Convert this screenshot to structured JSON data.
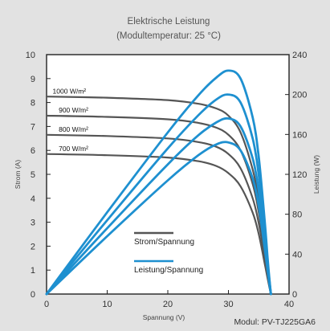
{
  "chart_data": {
    "type": "line",
    "title": "Elektrische Leistung",
    "subtitle": "(Modultemperatur: 25 °C)",
    "xlabel": "Spannung (V)",
    "ylabel_left": "Strom (A)",
    "ylabel_right": "Leistung (W)",
    "xlim": [
      0,
      40
    ],
    "ylim_left": [
      0,
      10
    ],
    "ylim_right": [
      0,
      240
    ],
    "xticks": [
      0,
      10,
      20,
      30,
      40
    ],
    "yticks_left": [
      0,
      1,
      2,
      3,
      4,
      5,
      6,
      7,
      8,
      9,
      10
    ],
    "yticks_right": [
      0,
      40,
      80,
      120,
      160,
      200,
      240
    ],
    "grid": false,
    "legend": {
      "placement": "bottom-center",
      "entries": [
        {
          "label": "Strom/Spannung",
          "color": "#555555"
        },
        {
          "label": "Leistung/Spannung",
          "color": "#1e90d0"
        }
      ]
    },
    "footer": "Modul: PV-TJ225GA6",
    "colors": {
      "iv": "#555555",
      "pv": "#1e90d0",
      "plot_bg": "#ffffff",
      "page_bg": "#e2e2e2"
    },
    "series": [
      {
        "name": "1000 W/m²",
        "kind": "iv",
        "x": [
          0,
          10,
          20,
          25,
          28,
          30,
          32,
          34,
          35,
          36,
          36.5,
          37
        ],
        "y": [
          8.25,
          8.2,
          8.1,
          7.95,
          7.75,
          7.45,
          6.75,
          5.2,
          3.9,
          2.0,
          0.9,
          0
        ]
      },
      {
        "name": "900 W/m²",
        "kind": "iv",
        "x": [
          0,
          10,
          20,
          25,
          28,
          30,
          32,
          34,
          35,
          36,
          36.5,
          37
        ],
        "y": [
          7.45,
          7.4,
          7.3,
          7.15,
          6.95,
          6.65,
          6.0,
          4.6,
          3.4,
          1.75,
          0.8,
          0
        ]
      },
      {
        "name": "800 W/m²",
        "kind": "iv",
        "x": [
          0,
          10,
          20,
          25,
          28,
          30,
          32,
          34,
          35,
          36,
          36.5,
          37
        ],
        "y": [
          6.65,
          6.6,
          6.5,
          6.35,
          6.15,
          5.85,
          5.25,
          4.0,
          2.95,
          1.5,
          0.7,
          0
        ]
      },
      {
        "name": "700 W/m²",
        "kind": "iv",
        "x": [
          0,
          10,
          20,
          25,
          28,
          30,
          32,
          34,
          35,
          36,
          36.5,
          37
        ],
        "y": [
          5.85,
          5.8,
          5.7,
          5.55,
          5.35,
          5.05,
          4.5,
          3.4,
          2.5,
          1.25,
          0.6,
          0
        ]
      },
      {
        "name": "1000 W/m²",
        "kind": "pv",
        "x": [
          0,
          10,
          20,
          25,
          28,
          30,
          32,
          34,
          35,
          36,
          36.5,
          37
        ],
        "y": [
          0,
          82,
          162,
          199,
          217,
          224,
          216,
          177,
          137,
          72,
          33,
          0
        ]
      },
      {
        "name": "900 W/m²",
        "kind": "pv",
        "x": [
          0,
          10,
          20,
          25,
          28,
          30,
          32,
          34,
          35,
          36,
          36.5,
          37
        ],
        "y": [
          0,
          74,
          146,
          179,
          195,
          200,
          192,
          156,
          119,
          63,
          29,
          0
        ]
      },
      {
        "name": "800 W/m²",
        "kind": "pv",
        "x": [
          0,
          10,
          20,
          25,
          28,
          30,
          32,
          34,
          35,
          36,
          36.5,
          37
        ],
        "y": [
          0,
          66,
          130,
          159,
          172,
          176,
          168,
          136,
          103,
          54,
          26,
          0
        ]
      },
      {
        "name": "700 W/m²",
        "kind": "pv",
        "x": [
          0,
          10,
          20,
          25,
          28,
          30,
          32,
          34,
          35,
          36,
          36.5,
          37
        ],
        "y": [
          0,
          58,
          114,
          139,
          150,
          152,
          144,
          116,
          88,
          45,
          22,
          0
        ]
      }
    ],
    "curve_labels": [
      {
        "text": "1000 W/m²",
        "x": 1,
        "y": 8.38
      },
      {
        "text": "900 W/m²",
        "x": 2,
        "y": 7.58
      },
      {
        "text": "800 W/m²",
        "x": 2,
        "y": 6.78
      },
      {
        "text": "700 W/m²",
        "x": 2,
        "y": 5.98
      }
    ]
  }
}
